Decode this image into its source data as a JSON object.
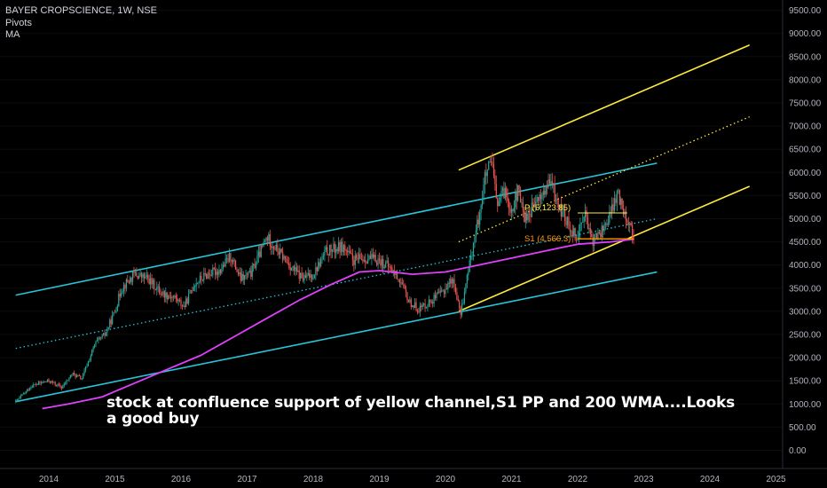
{
  "legend": {
    "title": "BAYER CROPSCIENCE, 1W, NSE",
    "indicator_1": "Pivots",
    "indicator_2": "MA"
  },
  "annotation": "stock at confluence support of yellow channel,S1 PP and 200 WMA....Looks a good buy",
  "colors": {
    "background": "#000000",
    "candle_up": "#26a69a",
    "candle_down": "#ef5350",
    "ma": "#e040fb",
    "cyan_channel": "#26c6da",
    "yellow_channel": "#ffeb3b",
    "pivot_p": "#ffeb3b",
    "pivot_s1": "#ff9800"
  },
  "chart_data": {
    "type": "candlestick",
    "timeframe": "1W",
    "xlim": [
      2013.5,
      2025.1
    ],
    "ylim": [
      -300,
      9700
    ],
    "y_ticks": [
      "9500.00",
      "9000.00",
      "8500.00",
      "8000.00",
      "7500.00",
      "7000.00",
      "6500.00",
      "6000.00",
      "5500.00",
      "5000.00",
      "4500.00",
      "4000.00",
      "3500.00",
      "3000.00",
      "2500.00",
      "2000.00",
      "1500.00",
      "1000.00",
      "500.00",
      "0.00"
    ],
    "x_ticks": [
      "2014",
      "2015",
      "2016",
      "2017",
      "2018",
      "2019",
      "2020",
      "2021",
      "2022",
      "2023",
      "2024",
      "2025"
    ],
    "x_tick_years": [
      2014,
      2015,
      2016,
      2017,
      2018,
      2019,
      2020,
      2021,
      2022,
      2023,
      2024,
      2025
    ],
    "price_path": [
      [
        2013.5,
        1050
      ],
      [
        2013.75,
        1400
      ],
      [
        2014.0,
        1500
      ],
      [
        2014.2,
        1350
      ],
      [
        2014.35,
        1650
      ],
      [
        2014.5,
        1550
      ],
      [
        2014.7,
        2300
      ],
      [
        2014.85,
        2500
      ],
      [
        2015.0,
        3000
      ],
      [
        2015.1,
        3500
      ],
      [
        2015.3,
        3800
      ],
      [
        2015.5,
        3700
      ],
      [
        2015.7,
        3400
      ],
      [
        2015.9,
        3300
      ],
      [
        2016.05,
        3100
      ],
      [
        2016.2,
        3600
      ],
      [
        2016.4,
        3800
      ],
      [
        2016.6,
        3900
      ],
      [
        2016.75,
        4200
      ],
      [
        2016.9,
        3700
      ],
      [
        2017.05,
        3800
      ],
      [
        2017.3,
        4600
      ],
      [
        2017.5,
        4250
      ],
      [
        2017.7,
        3900
      ],
      [
        2017.85,
        3700
      ],
      [
        2018.0,
        3800
      ],
      [
        2018.2,
        4300
      ],
      [
        2018.45,
        4400
      ],
      [
        2018.6,
        4100
      ],
      [
        2018.8,
        4150
      ],
      [
        2019.0,
        4100
      ],
      [
        2019.15,
        3950
      ],
      [
        2019.3,
        3700
      ],
      [
        2019.45,
        3200
      ],
      [
        2019.6,
        3050
      ],
      [
        2019.8,
        3250
      ],
      [
        2019.95,
        3400
      ],
      [
        2020.1,
        3700
      ],
      [
        2020.18,
        3300
      ],
      [
        2020.22,
        2900
      ],
      [
        2020.3,
        3500
      ],
      [
        2020.4,
        4300
      ],
      [
        2020.5,
        5000
      ],
      [
        2020.6,
        5900
      ],
      [
        2020.7,
        6200
      ],
      [
        2020.78,
        5300
      ],
      [
        2020.9,
        5600
      ],
      [
        2021.0,
        5200
      ],
      [
        2021.1,
        5600
      ],
      [
        2021.2,
        5000
      ],
      [
        2021.35,
        5300
      ],
      [
        2021.5,
        5600
      ],
      [
        2021.6,
        5800
      ],
      [
        2021.7,
        5300
      ],
      [
        2021.85,
        4900
      ],
      [
        2022.0,
        4600
      ],
      [
        2022.1,
        5200
      ],
      [
        2022.2,
        4500
      ],
      [
        2022.35,
        4700
      ],
      [
        2022.5,
        5100
      ],
      [
        2022.6,
        5550
      ],
      [
        2022.7,
        5200
      ],
      [
        2022.78,
        4900
      ],
      [
        2022.85,
        4600
      ]
    ],
    "ma_200": [
      [
        2013.9,
        900
      ],
      [
        2014.3,
        1000
      ],
      [
        2014.8,
        1150
      ],
      [
        2015.3,
        1450
      ],
      [
        2015.8,
        1750
      ],
      [
        2016.3,
        2050
      ],
      [
        2016.8,
        2450
      ],
      [
        2017.3,
        2850
      ],
      [
        2017.8,
        3250
      ],
      [
        2018.3,
        3600
      ],
      [
        2018.7,
        3850
      ],
      [
        2019.0,
        3880
      ],
      [
        2019.5,
        3800
      ],
      [
        2020.0,
        3850
      ],
      [
        2020.5,
        4000
      ],
      [
        2021.0,
        4150
      ],
      [
        2021.5,
        4300
      ],
      [
        2022.0,
        4450
      ],
      [
        2022.5,
        4500
      ],
      [
        2022.85,
        4560
      ]
    ],
    "pivots": {
      "P": {
        "value": 5123.85,
        "label": "P (5,123.85)",
        "from": 2022.0,
        "to": 2022.75
      },
      "S1": {
        "value": 4566.3,
        "label": "S1 (4,566.3)",
        "from": 2022.0,
        "to": 2022.85
      }
    },
    "channels": {
      "cyan_upper": [
        [
          2013.5,
          3350
        ],
        [
          2023.2,
          6200
        ]
      ],
      "cyan_lower": [
        [
          2013.5,
          1050
        ],
        [
          2023.2,
          3850
        ]
      ],
      "cyan_mid_dotted": [
        [
          2013.5,
          2200
        ],
        [
          2023.2,
          5000
        ]
      ],
      "yellow_upper": [
        [
          2020.2,
          6050
        ],
        [
          2024.6,
          8750
        ]
      ],
      "yellow_mid_dotted": [
        [
          2020.2,
          4500
        ],
        [
          2024.6,
          7200
        ]
      ],
      "yellow_lower": [
        [
          2020.2,
          3000
        ],
        [
          2024.6,
          5700
        ]
      ]
    }
  }
}
